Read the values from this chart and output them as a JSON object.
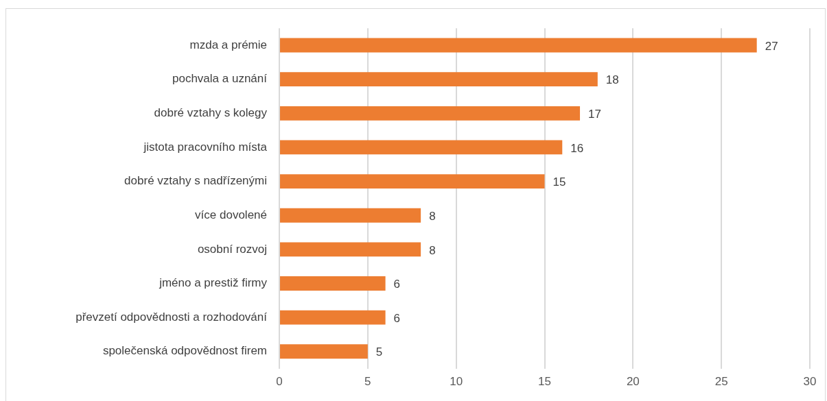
{
  "chart_data": {
    "type": "bar",
    "orientation": "horizontal",
    "categories": [
      "mzda a prémie",
      "pochvala a uznání",
      "dobré vztahy s kolegy",
      "jistota pracovního místa",
      "dobré vztahy s nadřízenými",
      "více dovolené",
      "osobní rozvoj",
      "jméno a prestiž firmy",
      "převzetí odpovědnosti a rozhodování",
      "společenská odpovědnost firem"
    ],
    "values": [
      27,
      18,
      17,
      16,
      15,
      8,
      8,
      6,
      6,
      5
    ],
    "color": "#ed7d31",
    "xlim": [
      0,
      30
    ],
    "xticks": [
      0,
      5,
      10,
      15,
      20,
      25,
      30
    ],
    "grid": "x",
    "data_labels": true,
    "legend": false
  }
}
